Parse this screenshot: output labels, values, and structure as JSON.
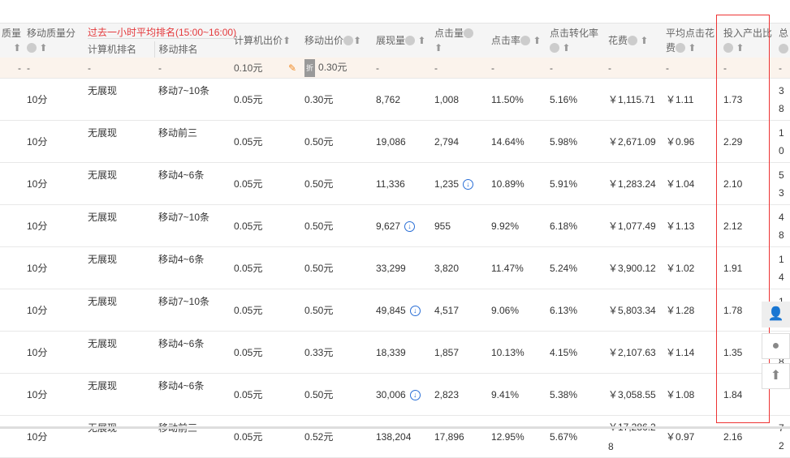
{
  "headers": {
    "quality": "质量",
    "mobile_quality": "移动质量分",
    "past_hour": "过去一小时平均排名(15:00~16:00)",
    "pc_rank": "计算机排名",
    "mobile_rank": "移动排名",
    "pc_bid": "计算机出价",
    "mobile_bid": "移动出价",
    "impressions": "展现量",
    "clicks": "点击量",
    "ctr": "点击率",
    "cvr": "点击转化率",
    "cost": "花费",
    "cpc": "平均点击花费",
    "roi": "投入产出比",
    "total": "总"
  },
  "summary": {
    "quality": "-",
    "mobile_quality": "-",
    "pc_rank": "-",
    "mobile_rank": "-",
    "pc_bid": "0.10元",
    "discount": "折",
    "mobile_bid": "0.30元",
    "impressions": "-",
    "clicks": "-",
    "ctr": "-",
    "cvr": "-",
    "cost": "-",
    "cpc": "-",
    "roi": "-",
    "total": "-"
  },
  "rows": [
    {
      "mq": "10分",
      "pr": "无展现",
      "mr": "移动7~10条",
      "pb": "0.05元",
      "mb": "0.30元",
      "imp": "8,762",
      "clk": "1,008",
      "ctr": "11.50%",
      "cvr": "5.16%",
      "cost": "￥1,115.71",
      "cpc": "￥1.11",
      "roi": "1.73",
      "tot": "38"
    },
    {
      "mq": "10分",
      "pr": "无展现",
      "mr": "移动前三",
      "pb": "0.05元",
      "mb": "0.50元",
      "imp": "19,086",
      "clk": "2,794",
      "ctr": "14.64%",
      "cvr": "5.98%",
      "cost": "￥2,671.09",
      "cpc": "￥0.96",
      "roi": "2.29",
      "tot": "10"
    },
    {
      "mq": "10分",
      "pr": "无展现",
      "mr": "移动4~6条",
      "pb": "0.05元",
      "mb": "0.50元",
      "imp": "11,336",
      "clk": "1,235",
      "clk_icon": true,
      "ctr": "10.89%",
      "cvr": "5.91%",
      "cost": "￥1,283.24",
      "cpc": "￥1.04",
      "roi": "2.10",
      "tot": "53"
    },
    {
      "mq": "10分",
      "pr": "无展现",
      "mr": "移动7~10条",
      "pb": "0.05元",
      "mb": "0.50元",
      "imp": "9,627",
      "imp_icon": true,
      "clk": "955",
      "ctr": "9.92%",
      "cvr": "6.18%",
      "cost": "￥1,077.49",
      "cpc": "￥1.13",
      "roi": "2.12",
      "tot": "48"
    },
    {
      "mq": "10分",
      "pr": "无展现",
      "mr": "移动4~6条",
      "pb": "0.05元",
      "mb": "0.50元",
      "imp": "33,299",
      "clk": "3,820",
      "ctr": "11.47%",
      "cvr": "5.24%",
      "cost": "￥3,900.12",
      "cpc": "￥1.02",
      "roi": "1.91",
      "tot": "14"
    },
    {
      "mq": "10分",
      "pr": "无展现",
      "mr": "移动7~10条",
      "pb": "0.05元",
      "mb": "0.50元",
      "imp": "49,845",
      "imp_icon": true,
      "clk": "4,517",
      "ctr": "9.06%",
      "cvr": "6.13%",
      "cost": "￥5,803.34",
      "cpc": "￥1.28",
      "roi": "1.78",
      "tot": "10"
    },
    {
      "mq": "10分",
      "pr": "无展现",
      "mr": "移动4~6条",
      "pb": "0.05元",
      "mb": "0.33元",
      "imp": "18,339",
      "clk": "1,857",
      "ctr": "10.13%",
      "cvr": "4.15%",
      "cost": "￥2,107.63",
      "cpc": "￥1.14",
      "roi": "1.35",
      "tot": "78"
    },
    {
      "mq": "10分",
      "pr": "无展现",
      "mr": "移动4~6条",
      "pb": "0.05元",
      "mb": "0.50元",
      "imp": "30,006",
      "imp_icon": true,
      "clk": "2,823",
      "ctr": "9.41%",
      "cvr": "5.38%",
      "cost": "￥3,058.55",
      "cpc": "￥1.08",
      "roi": "1.84",
      "tot": ""
    },
    {
      "mq": "10分",
      "pr": "无展现",
      "mr": "移动前三",
      "pb": "0.05元",
      "mb": "0.52元",
      "imp": "138,204",
      "clk": "17,896",
      "ctr": "12.95%",
      "cvr": "5.67%",
      "cost": "￥17,286.28",
      "cpc": "￥0.97",
      "roi": "2.16",
      "tot": "72"
    }
  ],
  "float_buttons": [
    "user-service-icon",
    "chat-icon",
    "back-to-top-icon"
  ],
  "colors": {
    "highlight_border": "#e33333",
    "summary_bg": "#fbf3ec",
    "rank_title": "#e4393c",
    "trend_icon": "#2a6fd6"
  }
}
